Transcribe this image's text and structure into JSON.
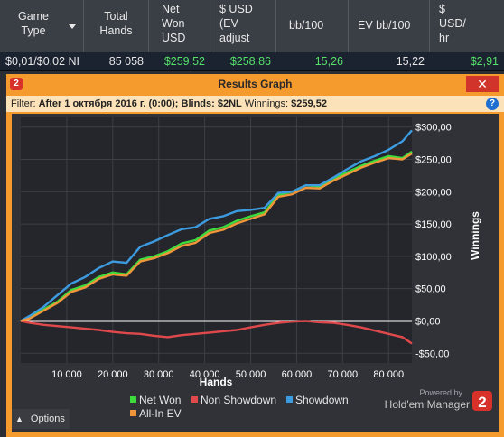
{
  "table": {
    "headers": {
      "game_type": [
        "Game",
        "Type"
      ],
      "total_hands": [
        "Total",
        "Hands"
      ],
      "net_won_usd": [
        "Net",
        "Won",
        "USD"
      ],
      "usd_ev_adjust": [
        "$ USD",
        "(EV",
        "adjust"
      ],
      "bb_100": [
        "bb/100"
      ],
      "ev_bb_100": [
        "EV bb/100"
      ],
      "usd_per_hr": [
        "$",
        "USD/",
        "hr"
      ]
    },
    "row": {
      "game_type": "$0,01/$0,02 NI",
      "total_hands": "85 058",
      "net_won_usd": "$259,52",
      "usd_ev_adjust": "$258,86",
      "bb_100": "15,26",
      "ev_bb_100": "15,22",
      "usd_per_hr": "$2,91"
    }
  },
  "dialog": {
    "app_badge": "2",
    "title": "Results Graph",
    "close_icon": "✕",
    "filter": {
      "prefix": "Filter:",
      "value": "After 1 октября 2016 г. (0:00); Blinds: $2NL",
      "winnings_label": "Winnings:",
      "winnings_value": "$259,52"
    },
    "help_icon": "?",
    "options_label": "Options",
    "powered_by": "Powered by",
    "brand_name": "Hold'em Manager",
    "brand_badge": "2"
  },
  "chart_data": {
    "type": "line",
    "xlabel": "Hands",
    "ylabel": "Winnings",
    "xlim": [
      0,
      85058
    ],
    "ylim": [
      -65,
      315
    ],
    "x_ticks": [
      10000,
      20000,
      30000,
      40000,
      50000,
      60000,
      70000,
      80000
    ],
    "x_tick_labels": [
      "10 000",
      "20 000",
      "30 000",
      "40 000",
      "50 000",
      "60 000",
      "70 000",
      "80 000"
    ],
    "y_ticks": [
      -50,
      0,
      50,
      100,
      150,
      200,
      250,
      300
    ],
    "y_tick_labels": [
      "-$50,00",
      "$0,00",
      "$50,00",
      "$100,00",
      "$150,00",
      "$200,00",
      "$250,00",
      "$300,00"
    ],
    "grid": true,
    "x": [
      0,
      2000,
      5000,
      8000,
      11000,
      14000,
      17000,
      20000,
      23000,
      26000,
      29000,
      32000,
      35000,
      38000,
      41000,
      44000,
      47000,
      50000,
      53000,
      56000,
      59000,
      62000,
      65000,
      68000,
      71000,
      74000,
      77000,
      80000,
      83000,
      85058
    ],
    "series": [
      {
        "name": "Net Won",
        "color": "#3ddc3d",
        "values": [
          0,
          5,
          18,
          30,
          48,
          55,
          68,
          75,
          72,
          95,
          100,
          108,
          120,
          125,
          140,
          145,
          155,
          162,
          168,
          195,
          200,
          210,
          208,
          220,
          230,
          240,
          248,
          255,
          252,
          262
        ]
      },
      {
        "name": "Non Showdown",
        "color": "#e0494b",
        "values": [
          0,
          -3,
          -6,
          -8,
          -10,
          -12,
          -14,
          -17,
          -19,
          -20,
          -23,
          -25,
          -22,
          -20,
          -18,
          -16,
          -14,
          -10,
          -6,
          -3,
          -1,
          0,
          -2,
          -3,
          -6,
          -10,
          -15,
          -20,
          -25,
          -35
        ]
      },
      {
        "name": "Showdown",
        "color": "#3d9be0",
        "values": [
          0,
          8,
          22,
          40,
          58,
          68,
          82,
          92,
          90,
          115,
          123,
          133,
          142,
          145,
          158,
          162,
          170,
          172,
          175,
          198,
          200,
          210,
          210,
          222,
          235,
          247,
          255,
          265,
          278,
          295
        ]
      },
      {
        "name": "All-In EV",
        "color": "#f0953a",
        "values": [
          0,
          4,
          16,
          28,
          45,
          52,
          65,
          72,
          70,
          92,
          97,
          105,
          116,
          121,
          136,
          141,
          151,
          158,
          165,
          192,
          196,
          206,
          205,
          217,
          227,
          237,
          245,
          252,
          250,
          259
        ]
      }
    ],
    "legend_position": "bottom"
  },
  "colors": {
    "accent": "#f59a2d",
    "positive": "#55e06a",
    "zero_line": "#ffffff"
  }
}
